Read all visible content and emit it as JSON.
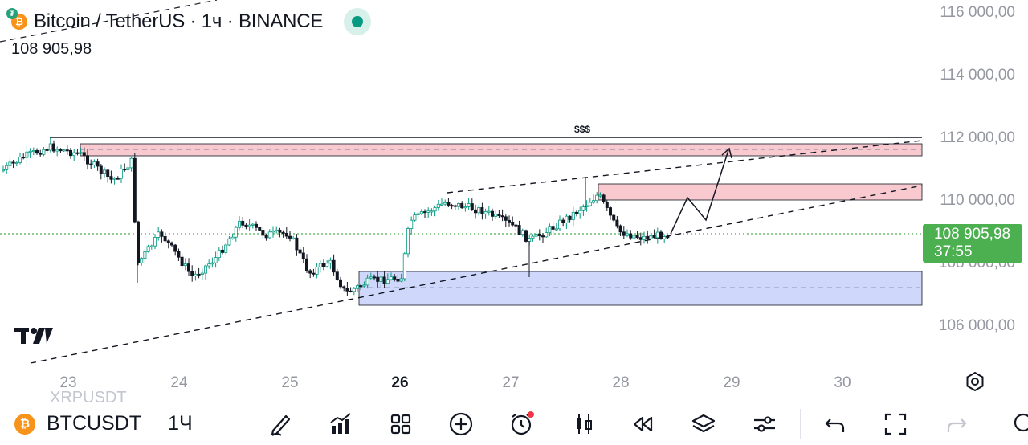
{
  "header": {
    "title": "Bitcoin / TetherUS · 1ч · BINANCE",
    "last_price": "108 905,98"
  },
  "price_axis": {
    "labels": [
      "116 000,00",
      "114 000,00",
      "112 000,00",
      "110 000,00",
      "106 000,00"
    ],
    "partial_label": "108 000,00"
  },
  "current_price_badge": {
    "price": "108 905,98",
    "countdown": "37:55",
    "color": "#4caf50"
  },
  "time_axis": {
    "labels": [
      "23",
      "24",
      "25",
      "26",
      "27",
      "28",
      "29",
      "30"
    ]
  },
  "annotations": {
    "liquidity_label": "$$$"
  },
  "colors": {
    "up_candle": "#089981",
    "down_candle": "#131722",
    "supply_zone": "#f8c9cf",
    "demand_zone": "#cfd8fb"
  },
  "toolbar": {
    "symbol": "BTCUSDT",
    "interval": "1Ч",
    "ghost_text": "XRPUSDT",
    "icons": [
      "drawing-pen-icon",
      "indicators-icon",
      "grid-layout-icon",
      "add-icon",
      "alert-clock-icon",
      "candles-icon",
      "replay-icon",
      "layers-icon",
      "settings-sliders-icon",
      "undo-icon",
      "fullscreen-icon",
      "redo-icon"
    ]
  }
}
